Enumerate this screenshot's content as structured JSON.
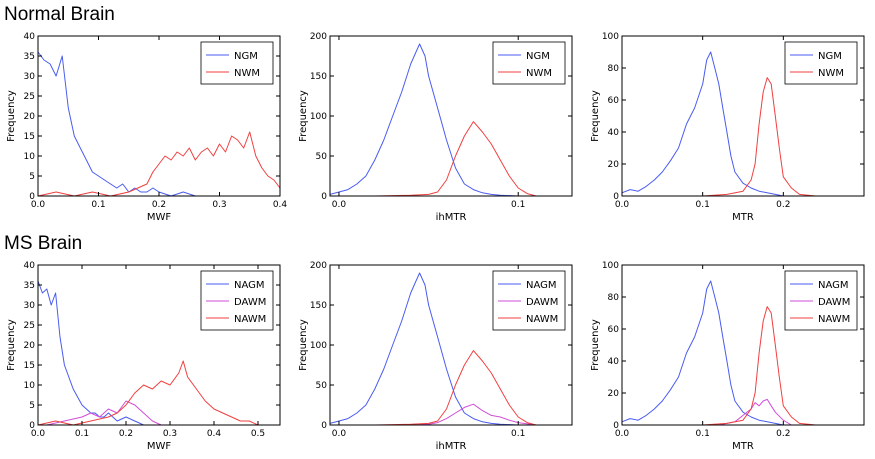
{
  "titles": {
    "normal": "Normal Brain",
    "ms": "MS Brain"
  },
  "colors": {
    "gm": "#4a5cf0",
    "wm": "#f04040",
    "dawm": "#d04ed8"
  },
  "chart_data": [
    {
      "id": "normal-mwf",
      "type": "line",
      "xlabel": "MWF",
      "ylabel": "Frequency",
      "xlim": [
        0,
        0.4
      ],
      "ylim": [
        0,
        40
      ],
      "xticks": [
        "0.0",
        "0.1",
        "0.2",
        "0.3",
        "0.4"
      ],
      "xtick_values": [
        0,
        0.1,
        0.2,
        0.3,
        0.4
      ],
      "yticks": [
        "0",
        "5",
        "10",
        "15",
        "20",
        "25",
        "30",
        "35",
        "40"
      ],
      "ytick_values": [
        0,
        5,
        10,
        15,
        20,
        25,
        30,
        35,
        40
      ],
      "series": [
        {
          "name": "NGM",
          "color_key": "gm",
          "x": [
            0,
            0.01,
            0.02,
            0.03,
            0.04,
            0.05,
            0.06,
            0.07,
            0.08,
            0.09,
            0.1,
            0.11,
            0.12,
            0.13,
            0.14,
            0.15,
            0.16,
            0.17,
            0.18,
            0.19,
            0.2,
            0.22,
            0.24,
            0.26,
            0.28
          ],
          "y": [
            36,
            34,
            33,
            30,
            35,
            22,
            15,
            12,
            9,
            6,
            5,
            4,
            3,
            2,
            3,
            1,
            2,
            1,
            1,
            2,
            1,
            0,
            1,
            0,
            0
          ]
        },
        {
          "name": "NWM",
          "color_key": "wm",
          "x": [
            0,
            0.03,
            0.06,
            0.09,
            0.12,
            0.15,
            0.18,
            0.19,
            0.2,
            0.21,
            0.22,
            0.23,
            0.24,
            0.25,
            0.26,
            0.27,
            0.28,
            0.29,
            0.3,
            0.31,
            0.32,
            0.33,
            0.34,
            0.35,
            0.36,
            0.37,
            0.38,
            0.39,
            0.4
          ],
          "y": [
            0,
            1,
            0,
            1,
            0,
            1,
            3,
            6,
            8,
            10,
            9,
            11,
            10,
            12,
            9,
            11,
            12,
            10,
            13,
            11,
            15,
            14,
            12,
            16,
            10,
            7,
            5,
            4,
            2
          ]
        }
      ]
    },
    {
      "id": "normal-ihmtr",
      "type": "line",
      "xlabel": "ihMTR",
      "ylabel": "Frequency",
      "xlim": [
        -0.005,
        0.13
      ],
      "ylim": [
        0,
        200
      ],
      "xticks": [
        "0.0",
        "0.1"
      ],
      "xtick_values": [
        0,
        0.1
      ],
      "yticks": [
        "0",
        "50",
        "100",
        "150",
        "200"
      ],
      "ytick_values": [
        0,
        50,
        100,
        150,
        200
      ],
      "series": [
        {
          "name": "NGM",
          "color_key": "gm",
          "x": [
            -0.005,
            0,
            0.005,
            0.01,
            0.015,
            0.02,
            0.025,
            0.03,
            0.035,
            0.04,
            0.043,
            0.045,
            0.048,
            0.05,
            0.055,
            0.06,
            0.065,
            0.07,
            0.075,
            0.08,
            0.085,
            0.09,
            0.1
          ],
          "y": [
            2,
            5,
            8,
            15,
            25,
            45,
            70,
            100,
            130,
            165,
            180,
            190,
            175,
            150,
            110,
            70,
            35,
            15,
            8,
            4,
            2,
            1,
            0
          ]
        },
        {
          "name": "NWM",
          "color_key": "wm",
          "x": [
            0.02,
            0.04,
            0.05,
            0.055,
            0.06,
            0.065,
            0.07,
            0.075,
            0.08,
            0.085,
            0.09,
            0.095,
            0.1,
            0.105,
            0.11
          ],
          "y": [
            0,
            1,
            2,
            5,
            20,
            50,
            75,
            93,
            80,
            65,
            45,
            25,
            10,
            3,
            0
          ]
        }
      ]
    },
    {
      "id": "normal-mtr",
      "type": "line",
      "xlabel": "MTR",
      "ylabel": "Frequency",
      "xlim": [
        0,
        0.3
      ],
      "ylim": [
        0,
        100
      ],
      "xticks": [
        "0.0",
        "0.1",
        "0.2"
      ],
      "xtick_values": [
        0,
        0.1,
        0.2
      ],
      "yticks": [
        "0",
        "20",
        "40",
        "60",
        "80",
        "100"
      ],
      "ytick_values": [
        0,
        20,
        40,
        60,
        80,
        100
      ],
      "series": [
        {
          "name": "NGM",
          "color_key": "gm",
          "x": [
            0,
            0.01,
            0.02,
            0.03,
            0.04,
            0.05,
            0.06,
            0.07,
            0.08,
            0.09,
            0.1,
            0.105,
            0.11,
            0.115,
            0.12,
            0.125,
            0.13,
            0.135,
            0.14,
            0.15,
            0.16,
            0.17,
            0.18,
            0.2
          ],
          "y": [
            2,
            4,
            3,
            6,
            10,
            15,
            22,
            30,
            45,
            55,
            70,
            85,
            90,
            80,
            70,
            55,
            40,
            25,
            15,
            8,
            5,
            3,
            2,
            0
          ]
        },
        {
          "name": "NWM",
          "color_key": "wm",
          "x": [
            0.1,
            0.13,
            0.15,
            0.16,
            0.165,
            0.17,
            0.175,
            0.18,
            0.185,
            0.19,
            0.195,
            0.2,
            0.21,
            0.22,
            0.24
          ],
          "y": [
            0,
            1,
            3,
            10,
            20,
            45,
            65,
            74,
            70,
            50,
            30,
            12,
            5,
            1,
            0
          ]
        }
      ]
    },
    {
      "id": "ms-mwf",
      "type": "line",
      "xlabel": "MWF",
      "ylabel": "Frequency",
      "xlim": [
        0,
        0.55
      ],
      "ylim": [
        0,
        40
      ],
      "xticks": [
        "0.0",
        "0.1",
        "0.2",
        "0.3",
        "0.4",
        "0.5"
      ],
      "xtick_values": [
        0,
        0.1,
        0.2,
        0.3,
        0.4,
        0.5
      ],
      "yticks": [
        "0",
        "5",
        "10",
        "15",
        "20",
        "25",
        "30",
        "35",
        "40"
      ],
      "ytick_values": [
        0,
        5,
        10,
        15,
        20,
        25,
        30,
        35,
        40
      ],
      "series": [
        {
          "name": "NAGM",
          "color_key": "gm",
          "x": [
            0,
            0.01,
            0.02,
            0.03,
            0.04,
            0.05,
            0.06,
            0.07,
            0.08,
            0.09,
            0.1,
            0.11,
            0.12,
            0.13,
            0.14,
            0.15,
            0.16,
            0.18,
            0.2,
            0.22,
            0.24,
            0.26
          ],
          "y": [
            36,
            33,
            34,
            30,
            33,
            22,
            15,
            12,
            9,
            7,
            5,
            4,
            3,
            3,
            2,
            2,
            3,
            1,
            2,
            1,
            0,
            0
          ]
        },
        {
          "name": "DAWM",
          "color_key": "dawm",
          "x": [
            0.02,
            0.06,
            0.1,
            0.12,
            0.14,
            0.16,
            0.18,
            0.2,
            0.22,
            0.24,
            0.26,
            0.28
          ],
          "y": [
            0,
            1,
            2,
            3,
            2,
            4,
            3,
            6,
            5,
            3,
            1,
            0
          ]
        },
        {
          "name": "NAWM",
          "color_key": "wm",
          "x": [
            0,
            0.04,
            0.08,
            0.12,
            0.16,
            0.18,
            0.2,
            0.22,
            0.24,
            0.26,
            0.28,
            0.3,
            0.32,
            0.33,
            0.34,
            0.36,
            0.38,
            0.4,
            0.42,
            0.44,
            0.46,
            0.48,
            0.5,
            0.52
          ],
          "y": [
            0,
            1,
            0,
            1,
            2,
            3,
            5,
            8,
            10,
            9,
            11,
            10,
            13,
            16,
            12,
            9,
            6,
            4,
            3,
            2,
            1,
            1,
            0,
            0
          ]
        }
      ]
    },
    {
      "id": "ms-ihmtr",
      "type": "line",
      "xlabel": "ihMTR",
      "ylabel": "Frequency",
      "xlim": [
        -0.005,
        0.13
      ],
      "ylim": [
        0,
        200
      ],
      "xticks": [
        "0.0",
        "0.1"
      ],
      "xtick_values": [
        0,
        0.1
      ],
      "yticks": [
        "0",
        "50",
        "100",
        "150",
        "200"
      ],
      "ytick_values": [
        0,
        50,
        100,
        150,
        200
      ],
      "series": [
        {
          "name": "NAGM",
          "color_key": "gm",
          "x": [
            -0.005,
            0,
            0.005,
            0.01,
            0.015,
            0.02,
            0.025,
            0.03,
            0.035,
            0.04,
            0.043,
            0.045,
            0.048,
            0.05,
            0.055,
            0.06,
            0.065,
            0.07,
            0.075,
            0.08,
            0.085,
            0.09,
            0.1
          ],
          "y": [
            2,
            5,
            8,
            15,
            25,
            45,
            70,
            100,
            130,
            165,
            180,
            190,
            175,
            150,
            110,
            70,
            35,
            15,
            8,
            4,
            2,
            1,
            0
          ]
        },
        {
          "name": "DAWM",
          "color_key": "dawm",
          "x": [
            0.04,
            0.05,
            0.055,
            0.06,
            0.065,
            0.07,
            0.075,
            0.08,
            0.085,
            0.09,
            0.095,
            0.1,
            0.11
          ],
          "y": [
            0,
            1,
            3,
            8,
            15,
            22,
            26,
            18,
            12,
            10,
            6,
            3,
            0
          ]
        },
        {
          "name": "NAWM",
          "color_key": "wm",
          "x": [
            0.02,
            0.04,
            0.05,
            0.055,
            0.06,
            0.065,
            0.07,
            0.075,
            0.08,
            0.085,
            0.09,
            0.095,
            0.1,
            0.105,
            0.11
          ],
          "y": [
            0,
            1,
            2,
            5,
            20,
            50,
            75,
            93,
            80,
            65,
            45,
            25,
            10,
            3,
            0
          ]
        }
      ]
    },
    {
      "id": "ms-mtr",
      "type": "line",
      "xlabel": "MTR",
      "ylabel": "Frequency",
      "xlim": [
        0,
        0.3
      ],
      "ylim": [
        0,
        100
      ],
      "xticks": [
        "0.0",
        "0.1",
        "0.2"
      ],
      "xtick_values": [
        0,
        0.1,
        0.2
      ],
      "yticks": [
        "0",
        "20",
        "40",
        "60",
        "80",
        "100"
      ],
      "ytick_values": [
        0,
        20,
        40,
        60,
        80,
        100
      ],
      "series": [
        {
          "name": "NAGM",
          "color_key": "gm",
          "x": [
            0,
            0.01,
            0.02,
            0.03,
            0.04,
            0.05,
            0.06,
            0.07,
            0.08,
            0.09,
            0.1,
            0.105,
            0.11,
            0.115,
            0.12,
            0.125,
            0.13,
            0.135,
            0.14,
            0.15,
            0.16,
            0.17,
            0.18,
            0.2
          ],
          "y": [
            2,
            4,
            3,
            6,
            10,
            15,
            22,
            30,
            45,
            55,
            70,
            85,
            90,
            80,
            70,
            55,
            40,
            25,
            15,
            8,
            5,
            3,
            2,
            0
          ]
        },
        {
          "name": "DAWM",
          "color_key": "dawm",
          "x": [
            0.12,
            0.14,
            0.15,
            0.16,
            0.165,
            0.17,
            0.175,
            0.18,
            0.185,
            0.19,
            0.2,
            0.21
          ],
          "y": [
            0,
            2,
            6,
            10,
            14,
            12,
            15,
            16,
            12,
            8,
            3,
            0
          ]
        },
        {
          "name": "NAWM",
          "color_key": "wm",
          "x": [
            0.1,
            0.13,
            0.15,
            0.16,
            0.165,
            0.17,
            0.175,
            0.18,
            0.185,
            0.19,
            0.195,
            0.2,
            0.21,
            0.22,
            0.24
          ],
          "y": [
            0,
            1,
            3,
            10,
            20,
            45,
            65,
            74,
            70,
            50,
            30,
            12,
            5,
            1,
            0
          ]
        }
      ]
    }
  ]
}
